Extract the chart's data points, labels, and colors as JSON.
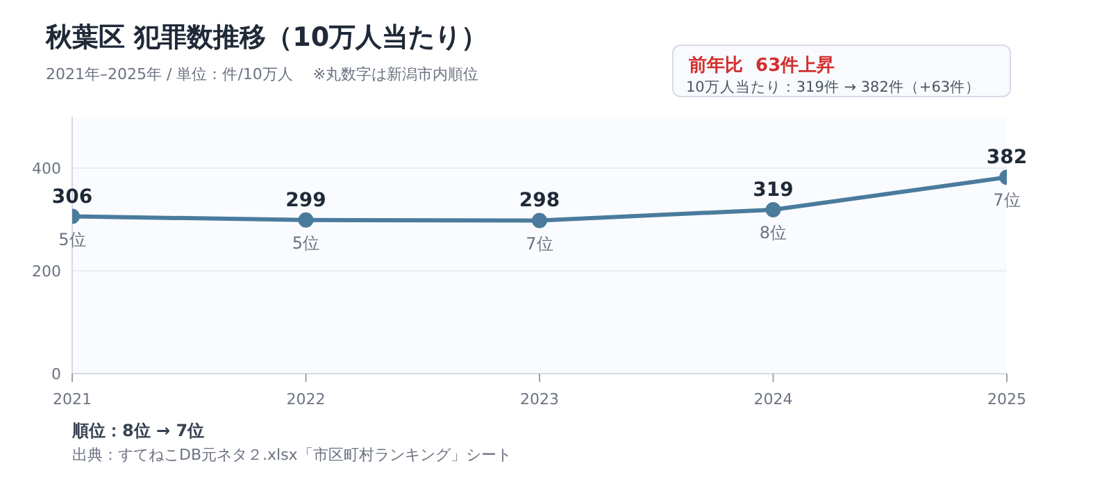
{
  "chart_data": {
    "type": "line",
    "title": "秋葉区  犯罪数推移（10万人当たり）",
    "subtitle": "2021年–2025年 / 単位：件/10万人　 ※丸数字は新潟市内順位",
    "x": [
      2021,
      2022,
      2023,
      2024,
      2025
    ],
    "series": [
      {
        "color": "#4a7b9d",
        "values": [
          306,
          299,
          298,
          319,
          382
        ]
      }
    ],
    "xlim": [
      2021,
      2025
    ],
    "xticks": [
      2021,
      2022,
      2023,
      2024,
      2025
    ],
    "ylim": [
      0,
      500
    ],
    "yticks": [
      0,
      200,
      400
    ],
    "grid": "y",
    "marker": "circle",
    "line_style": "solid",
    "data_labels": true,
    "legend": false,
    "annotations": [
      "前年比  63件上昇",
      "10万人当たり：319件 → 382件（+63件）",
      "順位：8位 → 7位",
      "出典：すてねこDB元ネタ２.xlsx「市区町村ランキング」シート",
      {
        "text": "5位",
        "x": 2021,
        "y": 306
      },
      {
        "text": "5位",
        "x": 2022,
        "y": 299
      },
      {
        "text": "7位",
        "x": 2023,
        "y": 298
      },
      {
        "text": "8位",
        "x": 2024,
        "y": 319
      },
      {
        "text": "7位",
        "x": 2025,
        "y": 382
      }
    ]
  }
}
